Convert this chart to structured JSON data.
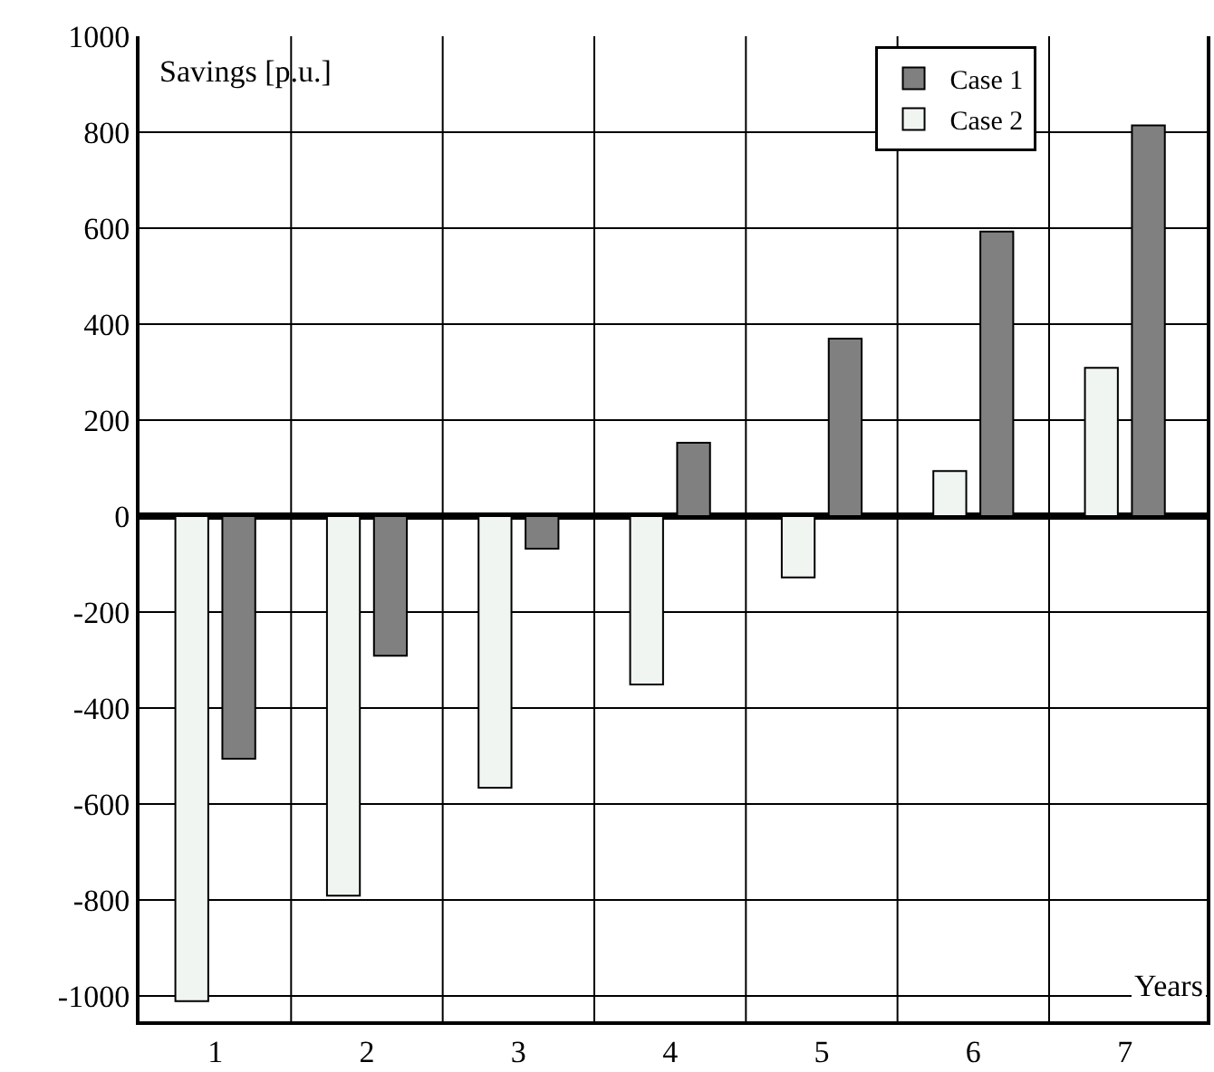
{
  "chart_data": {
    "type": "bar",
    "xlabel": "Years",
    "ylabel": "Savings [p.u.]",
    "categories": [
      "1",
      "2",
      "3",
      "4",
      "5",
      "6",
      "7"
    ],
    "series": [
      {
        "name": "Case 2",
        "color": "#f0f5f2",
        "values": [
          -1011,
          -791,
          -566,
          -351,
          -128,
          94,
          309
        ]
      },
      {
        "name": "Case 1",
        "color": "#808080",
        "values": [
          -506,
          -291,
          -68,
          153,
          370,
          593,
          814
        ]
      }
    ],
    "ylim": [
      -1053,
      1000
    ],
    "yticks": [
      -1000,
      -800,
      -600,
      -400,
      -200,
      0,
      200,
      400,
      600,
      800,
      1000
    ],
    "grid": true,
    "legend": "top right"
  }
}
